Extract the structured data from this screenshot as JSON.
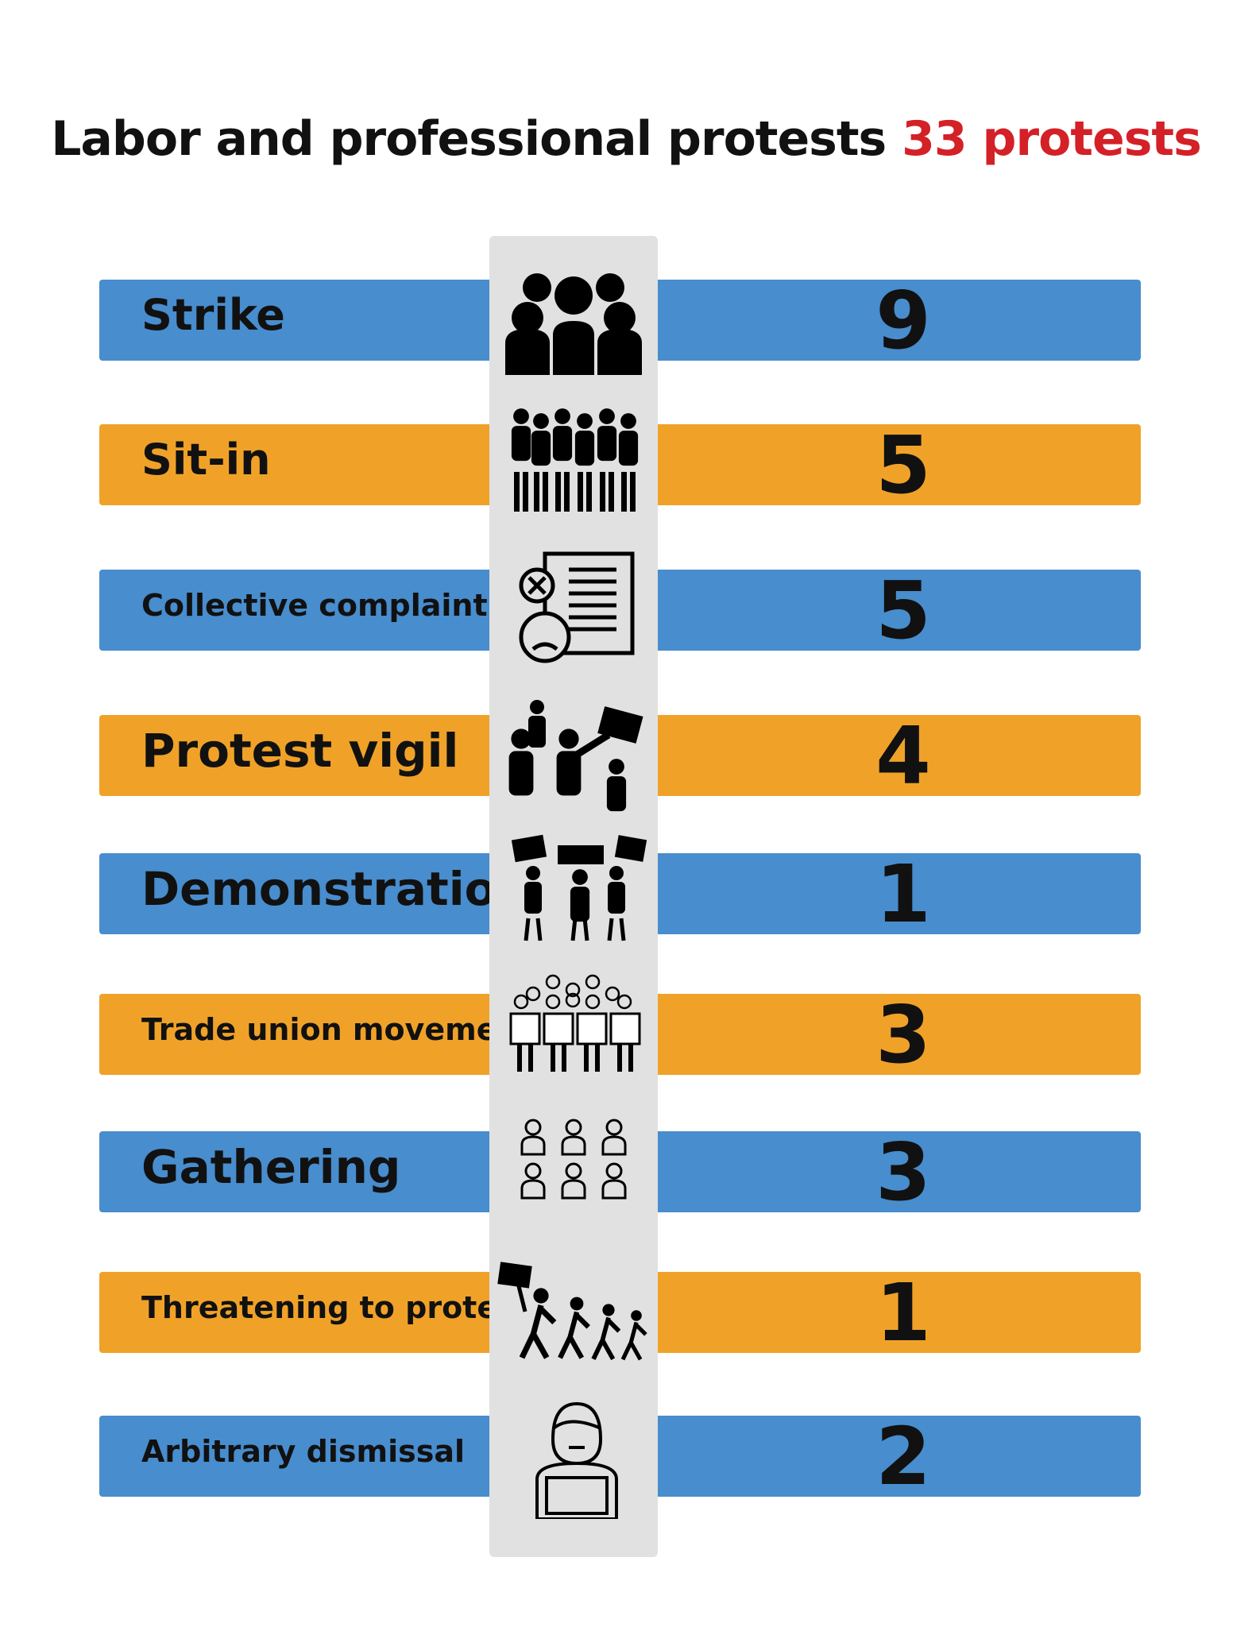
{
  "title": {
    "main": "Labor and professional protests",
    "total": "33 protests"
  },
  "colors": {
    "blue": "#488dcd",
    "orange": "#f0a228",
    "accent": "#d42027",
    "column": "#e1e1e1"
  },
  "chart_data": {
    "type": "bar",
    "title": "Labor and professional protests 33 protests",
    "categories": [
      "Strike",
      "Sit-in",
      "Collective complaint",
      "Protest vigil",
      "Demonstration",
      "Trade union movement",
      "Gathering",
      "Threatening to protest",
      "Arbitrary dismissal"
    ],
    "values": [
      9,
      5,
      5,
      4,
      1,
      3,
      3,
      1,
      2
    ],
    "icons": [
      "crowd-icon",
      "sit-in-group-icon",
      "complaint-document-icon",
      "protest-vigil-icon",
      "demonstration-signs-icon",
      "trade-union-icon",
      "gathering-people-icon",
      "marching-protest-icon",
      "dismissed-worker-icon"
    ]
  }
}
